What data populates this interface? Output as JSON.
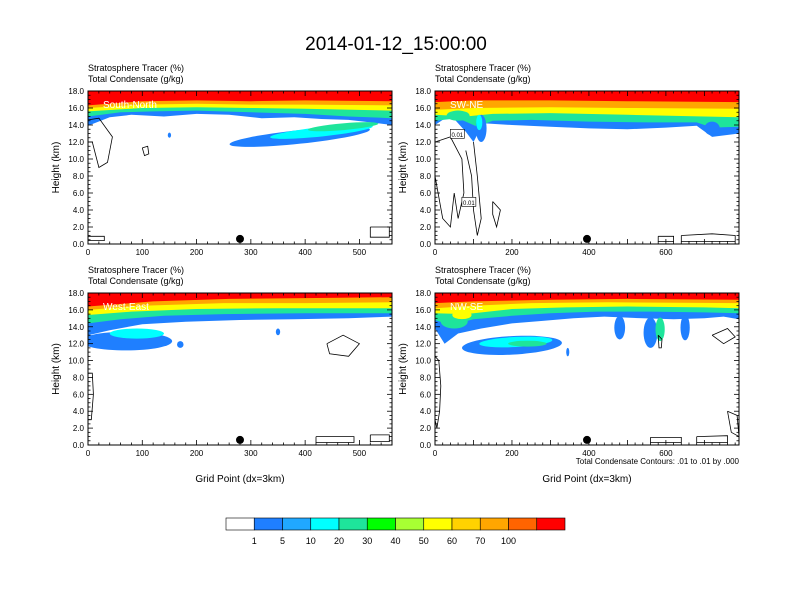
{
  "figure": {
    "title": "2014-01-12_15:00:00",
    "contour_note": "Total Condensate Contours: .01 to .01 by .000"
  },
  "colors": {
    "levels": [
      "#ffffff",
      "#1f7fff",
      "#20a8ff",
      "#00ffff",
      "#1ee59b",
      "#00ff00",
      "#a8ff33",
      "#ffff00",
      "#ffd200",
      "#ffa600",
      "#ff6400",
      "#ff0000"
    ]
  },
  "colorbar": {
    "labels": [
      "1",
      "5",
      "10",
      "20",
      "30",
      "40",
      "50",
      "60",
      "70",
      "100"
    ]
  },
  "chart_data": [
    {
      "type": "heatmap",
      "name": "South-North",
      "subtitle1": "Stratosphere Tracer   (%)",
      "subtitle2": "Total Condensate   (g/kg)",
      "ylabel": "Height (km)",
      "xlabel": "",
      "xlim": [
        0,
        560
      ],
      "ylim": [
        0,
        18
      ],
      "xticks": [
        0,
        100,
        200,
        300,
        400,
        500
      ],
      "yticks": [
        "0.0",
        "2.0",
        "4.0",
        "6.0",
        "8.0",
        "10.0",
        "12.0",
        "14.0",
        "16.0",
        "18.0"
      ],
      "marker": {
        "x": 280,
        "y": 0.6
      },
      "contour_labels": []
    },
    {
      "type": "heatmap",
      "name": "SW-NE",
      "subtitle1": "Stratosphere Tracer   (%)",
      "subtitle2": "Total Condensate   (g/kg)",
      "ylabel": "Height (km)",
      "xlabel": "",
      "xlim": [
        0,
        790
      ],
      "ylim": [
        0,
        18
      ],
      "xticks": [
        0,
        200,
        400,
        600
      ],
      "yticks": [
        "0.0",
        "2.0",
        "4.0",
        "6.0",
        "8.0",
        "10.0",
        "12.0",
        "14.0",
        "16.0",
        "18.0"
      ],
      "marker": {
        "x": 395,
        "y": 0.6
      },
      "contour_labels": [
        {
          "x": 58,
          "y": 12.9,
          "text": "0.01"
        },
        {
          "x": 88,
          "y": 4.9,
          "text": "0.01"
        }
      ]
    },
    {
      "type": "heatmap",
      "name": "West-East",
      "subtitle1": "Stratosphere Tracer   (%)",
      "subtitle2": "Total Condensate   (g/kg)",
      "ylabel": "Height (km)",
      "xlabel": "Grid Point (dx=3km)",
      "xlim": [
        0,
        560
      ],
      "ylim": [
        0,
        18
      ],
      "xticks": [
        0,
        100,
        200,
        300,
        400,
        500
      ],
      "yticks": [
        "0.0",
        "2.0",
        "4.0",
        "6.0",
        "8.0",
        "10.0",
        "12.0",
        "14.0",
        "16.0",
        "18.0"
      ],
      "marker": {
        "x": 280,
        "y": 0.6
      },
      "contour_labels": []
    },
    {
      "type": "heatmap",
      "name": "NW-SE",
      "subtitle1": "Stratosphere Tracer   (%)",
      "subtitle2": "Total Condensate   (g/kg)",
      "ylabel": "Height (km)",
      "xlabel": "Grid Point (dx=3km)",
      "xlim": [
        0,
        790
      ],
      "ylim": [
        0,
        18
      ],
      "xticks": [
        0,
        200,
        400,
        600
      ],
      "yticks": [
        "0.0",
        "2.0",
        "4.0",
        "6.0",
        "8.0",
        "10.0",
        "12.0",
        "14.0",
        "16.0",
        "18.0"
      ],
      "marker": {
        "x": 395,
        "y": 0.6
      },
      "contour_labels": []
    }
  ]
}
